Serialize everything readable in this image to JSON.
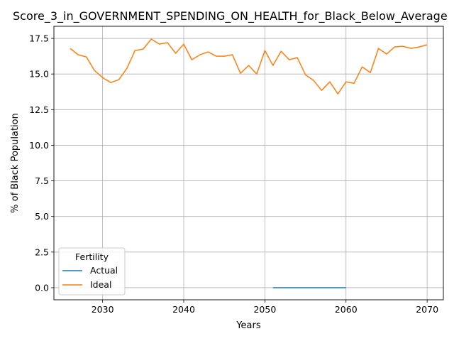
{
  "chart_data": {
    "type": "line",
    "title": "Score_3_in_GOVERNMENT_SPENDING_ON_HEALTH_for_Black_Below_Average",
    "xlabel": "Years",
    "ylabel": "% of Black Population",
    "xlim": [
      2024,
      2072
    ],
    "ylim": [
      -0.85,
      18.35
    ],
    "xticks": [
      2030,
      2040,
      2050,
      2060,
      2070
    ],
    "yticks": [
      0.0,
      2.5,
      5.0,
      7.5,
      10.0,
      12.5,
      15.0,
      17.5
    ],
    "ytick_labels": [
      "0.0",
      "2.5",
      "5.0",
      "7.5",
      "10.0",
      "12.5",
      "15.0",
      "17.5"
    ],
    "grid": true,
    "legend": {
      "title": "Fertility",
      "placement": "lower-left"
    },
    "series": [
      {
        "name": "Actual",
        "color": "#1f77b4",
        "x": [
          2051,
          2052,
          2053,
          2054,
          2055,
          2056,
          2057,
          2058,
          2059,
          2060
        ],
        "y": [
          0,
          0,
          0,
          0,
          0,
          0,
          0,
          0,
          0,
          0
        ]
      },
      {
        "name": "Ideal",
        "color": "#ff7f0e",
        "x": [
          2026,
          2027,
          2028,
          2029,
          2030,
          2031,
          2032,
          2033,
          2034,
          2035,
          2036,
          2037,
          2038,
          2039,
          2040,
          2041,
          2042,
          2043,
          2044,
          2045,
          2046,
          2047,
          2048,
          2049,
          2050,
          2051,
          2052,
          2053,
          2054,
          2055,
          2056,
          2057,
          2058,
          2059,
          2060,
          2061,
          2062,
          2063,
          2064,
          2065,
          2066,
          2067,
          2068,
          2069,
          2070
        ],
        "y": [
          16.8,
          16.35,
          16.2,
          15.25,
          14.75,
          14.4,
          14.6,
          15.4,
          16.65,
          16.75,
          17.45,
          17.1,
          17.2,
          16.45,
          17.1,
          16.0,
          16.35,
          16.55,
          16.25,
          16.25,
          16.35,
          15.05,
          15.6,
          15.0,
          16.65,
          15.6,
          16.6,
          16.0,
          16.15,
          14.95,
          14.55,
          13.85,
          14.45,
          13.6,
          14.45,
          14.35,
          15.5,
          15.1,
          16.8,
          16.4,
          16.9,
          16.95,
          16.8,
          16.9,
          17.05
        ]
      }
    ]
  }
}
